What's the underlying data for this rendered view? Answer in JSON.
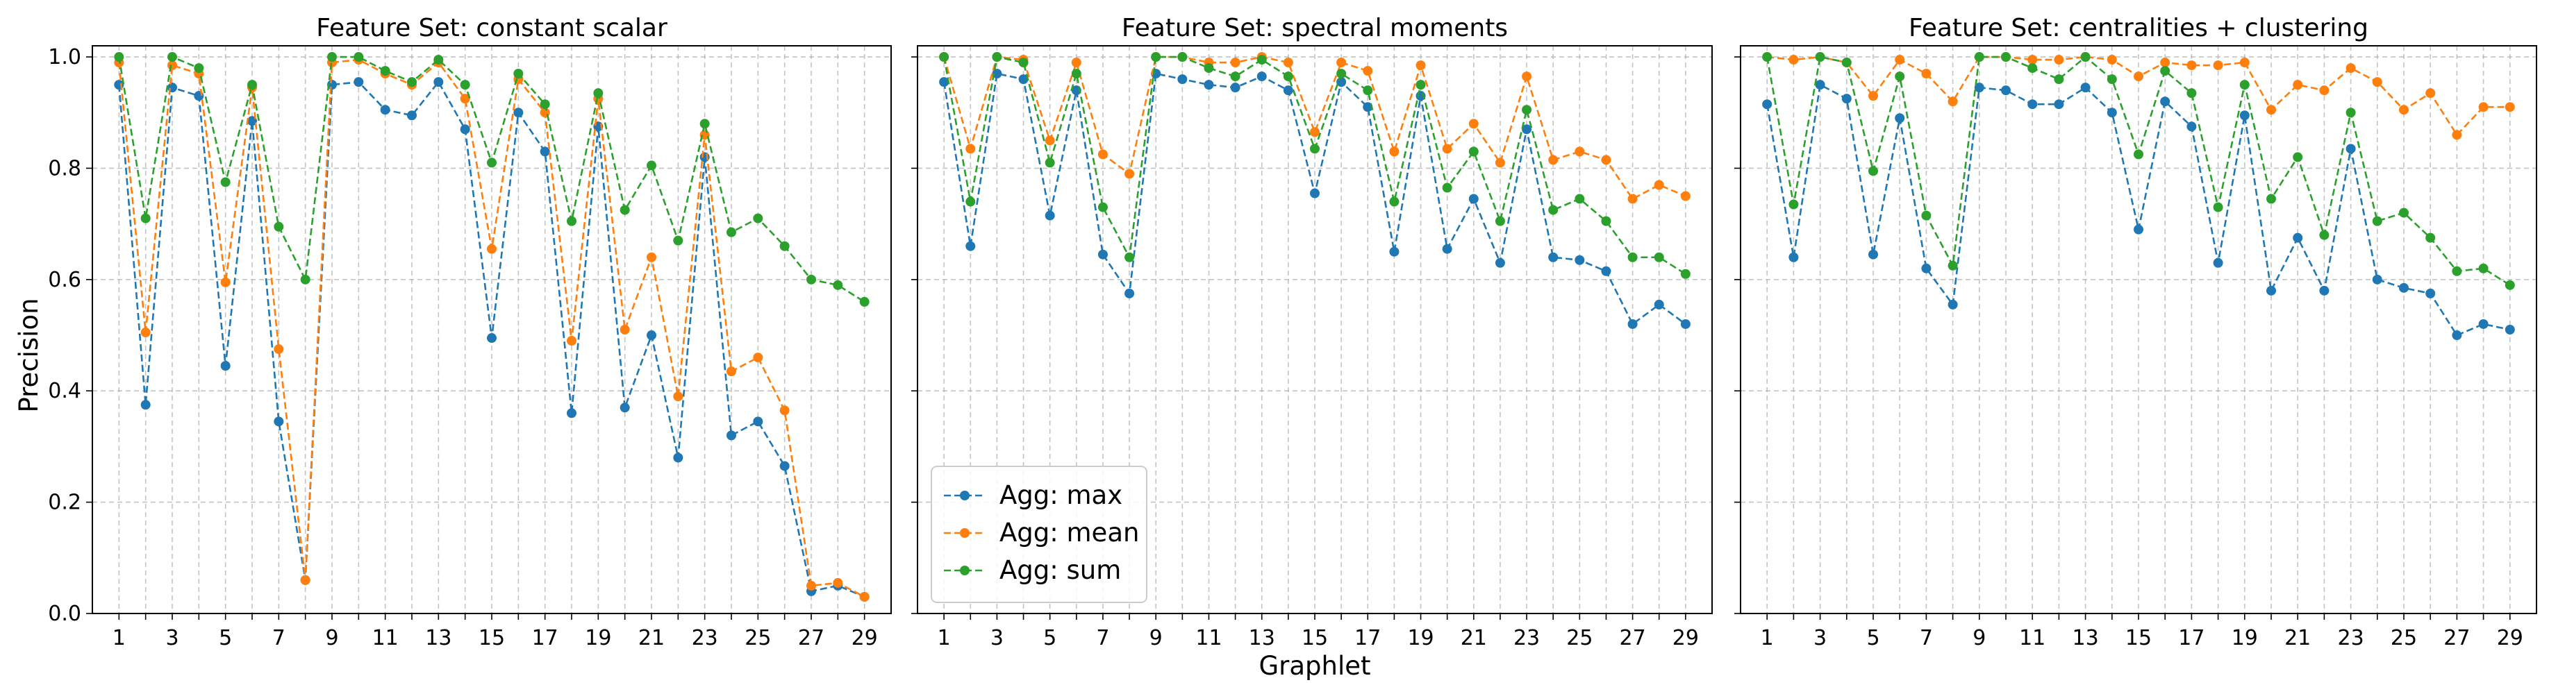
{
  "figure": {
    "xlabel": "Graphlet",
    "ylabel": "Precision"
  },
  "chart_data": [
    {
      "type": "line",
      "title": "Feature Set: constant scalar",
      "xlabel": "Graphlet",
      "ylabel": "Precision",
      "xlim": [
        0,
        30
      ],
      "ylim": [
        0,
        1.02
      ],
      "grid": true,
      "legend": null,
      "x": [
        1,
        2,
        3,
        4,
        5,
        6,
        7,
        8,
        9,
        10,
        11,
        12,
        13,
        14,
        15,
        16,
        17,
        18,
        19,
        20,
        21,
        22,
        23,
        24,
        25,
        26,
        27,
        28,
        29
      ],
      "xticks": [
        "1",
        "3",
        "5",
        "7",
        "9",
        "11",
        "13",
        "15",
        "17",
        "19",
        "21",
        "23",
        "25",
        "27",
        "29"
      ],
      "yticks": [
        "0.0",
        "0.2",
        "0.4",
        "0.6",
        "0.8",
        "1.0"
      ],
      "series": [
        {
          "name": "Agg: max",
          "color": "#1f77b4",
          "values": [
            0.95,
            0.375,
            0.945,
            0.93,
            0.445,
            0.885,
            0.345,
            0.06,
            0.95,
            0.955,
            0.905,
            0.895,
            0.955,
            0.87,
            0.495,
            0.9,
            0.83,
            0.36,
            0.875,
            0.37,
            0.5,
            0.28,
            0.82,
            0.32,
            0.345,
            0.265,
            0.04,
            0.05,
            0.03
          ]
        },
        {
          "name": "Agg: mean",
          "color": "#ff7f0e",
          "values": [
            0.99,
            0.505,
            0.985,
            0.97,
            0.595,
            0.945,
            0.475,
            0.06,
            0.99,
            0.995,
            0.97,
            0.95,
            0.99,
            0.925,
            0.655,
            0.96,
            0.9,
            0.49,
            0.925,
            0.51,
            0.64,
            0.39,
            0.86,
            0.435,
            0.46,
            0.365,
            0.05,
            0.055,
            0.03
          ]
        },
        {
          "name": "Agg: sum",
          "color": "#2ca02c",
          "values": [
            1.0,
            0.71,
            1.0,
            0.98,
            0.775,
            0.95,
            0.695,
            0.6,
            1.0,
            1.0,
            0.975,
            0.955,
            0.995,
            0.95,
            0.81,
            0.97,
            0.915,
            0.705,
            0.935,
            0.725,
            0.805,
            0.67,
            0.88,
            0.685,
            0.71,
            0.66,
            0.6,
            0.59,
            0.56
          ]
        }
      ]
    },
    {
      "type": "line",
      "title": "Feature Set: spectral moments",
      "xlabel": "Graphlet",
      "ylabel": "Precision",
      "xlim": [
        0,
        30
      ],
      "ylim": [
        0,
        1.02
      ],
      "grid": true,
      "legend": "lower-left",
      "x": [
        1,
        2,
        3,
        4,
        5,
        6,
        7,
        8,
        9,
        10,
        11,
        12,
        13,
        14,
        15,
        16,
        17,
        18,
        19,
        20,
        21,
        22,
        23,
        24,
        25,
        26,
        27,
        28,
        29
      ],
      "xticks": [
        "1",
        "3",
        "5",
        "7",
        "9",
        "11",
        "13",
        "15",
        "17",
        "19",
        "21",
        "23",
        "25",
        "27",
        "29"
      ],
      "yticks": [
        "0.0",
        "0.2",
        "0.4",
        "0.6",
        "0.8",
        "1.0"
      ],
      "series": [
        {
          "name": "Agg: max",
          "color": "#1f77b4",
          "values": [
            0.955,
            0.66,
            0.97,
            0.96,
            0.715,
            0.94,
            0.645,
            0.575,
            0.97,
            0.96,
            0.95,
            0.945,
            0.965,
            0.94,
            0.755,
            0.955,
            0.91,
            0.65,
            0.93,
            0.655,
            0.745,
            0.63,
            0.87,
            0.64,
            0.635,
            0.615,
            0.52,
            0.555,
            0.52
          ]
        },
        {
          "name": "Agg: mean",
          "color": "#ff7f0e",
          "values": [
            1.0,
            0.835,
            1.0,
            0.995,
            0.85,
            0.99,
            0.825,
            0.79,
            1.0,
            1.0,
            0.99,
            0.99,
            1.0,
            0.99,
            0.865,
            0.99,
            0.975,
            0.83,
            0.985,
            0.835,
            0.88,
            0.81,
            0.965,
            0.815,
            0.83,
            0.815,
            0.745,
            0.77,
            0.75
          ]
        },
        {
          "name": "Agg: sum",
          "color": "#2ca02c",
          "values": [
            1.0,
            0.74,
            1.0,
            0.99,
            0.81,
            0.97,
            0.73,
            0.64,
            1.0,
            1.0,
            0.98,
            0.965,
            0.995,
            0.965,
            0.835,
            0.97,
            0.94,
            0.74,
            0.95,
            0.765,
            0.83,
            0.705,
            0.905,
            0.725,
            0.745,
            0.705,
            0.64,
            0.64,
            0.61
          ]
        }
      ]
    },
    {
      "type": "line",
      "title": "Feature Set: centralities + clustering",
      "xlabel": "Graphlet",
      "ylabel": "Precision",
      "xlim": [
        0,
        30
      ],
      "ylim": [
        0,
        1.02
      ],
      "grid": true,
      "legend": null,
      "x": [
        1,
        2,
        3,
        4,
        5,
        6,
        7,
        8,
        9,
        10,
        11,
        12,
        13,
        14,
        15,
        16,
        17,
        18,
        19,
        20,
        21,
        22,
        23,
        24,
        25,
        26,
        27,
        28,
        29
      ],
      "xticks": [
        "1",
        "3",
        "5",
        "7",
        "9",
        "11",
        "13",
        "15",
        "17",
        "19",
        "21",
        "23",
        "25",
        "27",
        "29"
      ],
      "yticks": [
        "0.0",
        "0.2",
        "0.4",
        "0.6",
        "0.8",
        "1.0"
      ],
      "series": [
        {
          "name": "Agg: max",
          "color": "#1f77b4",
          "values": [
            0.915,
            0.64,
            0.95,
            0.925,
            0.645,
            0.89,
            0.62,
            0.555,
            0.945,
            0.94,
            0.915,
            0.915,
            0.945,
            0.9,
            0.69,
            0.92,
            0.875,
            0.63,
            0.895,
            0.58,
            0.675,
            0.58,
            0.835,
            0.6,
            0.585,
            0.575,
            0.5,
            0.52,
            0.51
          ]
        },
        {
          "name": "Agg: mean",
          "color": "#ff7f0e",
          "values": [
            1.0,
            0.995,
            1.0,
            0.99,
            0.93,
            0.995,
            0.97,
            0.92,
            1.0,
            1.0,
            0.995,
            0.995,
            1.0,
            0.995,
            0.965,
            0.99,
            0.985,
            0.985,
            0.99,
            0.905,
            0.95,
            0.94,
            0.98,
            0.955,
            0.905,
            0.935,
            0.86,
            0.91,
            0.91
          ]
        },
        {
          "name": "Agg: sum",
          "color": "#2ca02c",
          "values": [
            1.0,
            0.735,
            1.0,
            0.99,
            0.795,
            0.965,
            0.715,
            0.625,
            1.0,
            1.0,
            0.98,
            0.96,
            1.0,
            0.96,
            0.825,
            0.975,
            0.935,
            0.73,
            0.95,
            0.745,
            0.82,
            0.68,
            0.9,
            0.705,
            0.72,
            0.675,
            0.615,
            0.62,
            0.59
          ]
        }
      ]
    }
  ]
}
